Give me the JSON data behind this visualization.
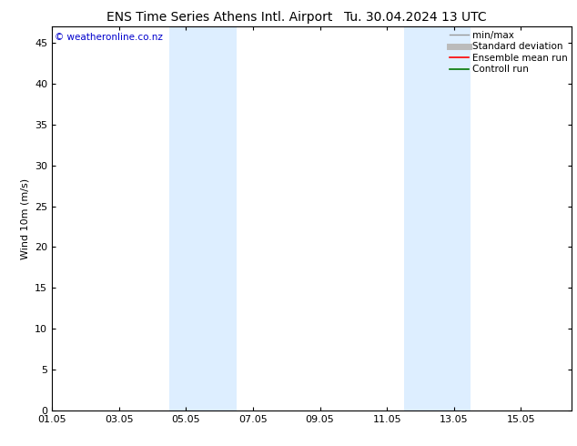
{
  "title_left": "ENS Time Series Athens Intl. Airport",
  "title_right": "Tu. 30.04.2024 13 UTC",
  "ylabel": "Wind 10m (m/s)",
  "watermark": "© weatheronline.co.nz",
  "watermark_color": "#0000cc",
  "background_color": "#ffffff",
  "plot_bg_color": "#ffffff",
  "ylim": [
    0,
    47
  ],
  "yticks": [
    0,
    5,
    10,
    15,
    20,
    25,
    30,
    35,
    40,
    45
  ],
  "xlim_start": 0.0,
  "xlim_end": 15.5,
  "xtick_positions": [
    0,
    2,
    4,
    6,
    8,
    10,
    12,
    14
  ],
  "xtick_labels": [
    "01.05",
    "03.05",
    "05.05",
    "07.05",
    "09.05",
    "11.05",
    "13.05",
    "15.05"
  ],
  "shaded_bands": [
    {
      "x_start": 3.5,
      "x_end": 5.5
    },
    {
      "x_start": 10.5,
      "x_end": 12.5
    }
  ],
  "shade_color": "#ddeeff",
  "legend_entries": [
    {
      "label": "min/max",
      "color": "#999999",
      "lw": 1.0
    },
    {
      "label": "Standard deviation",
      "color": "#bbbbbb",
      "lw": 5.0
    },
    {
      "label": "Ensemble mean run",
      "color": "#ff0000",
      "lw": 1.2
    },
    {
      "label": "Controll run",
      "color": "#007700",
      "lw": 1.2
    }
  ],
  "font_size_title": 10,
  "font_size_axis": 8,
  "font_size_tick": 8,
  "font_size_legend": 7.5,
  "font_size_watermark": 7.5,
  "spine_color": "#000000",
  "spine_lw": 0.8
}
